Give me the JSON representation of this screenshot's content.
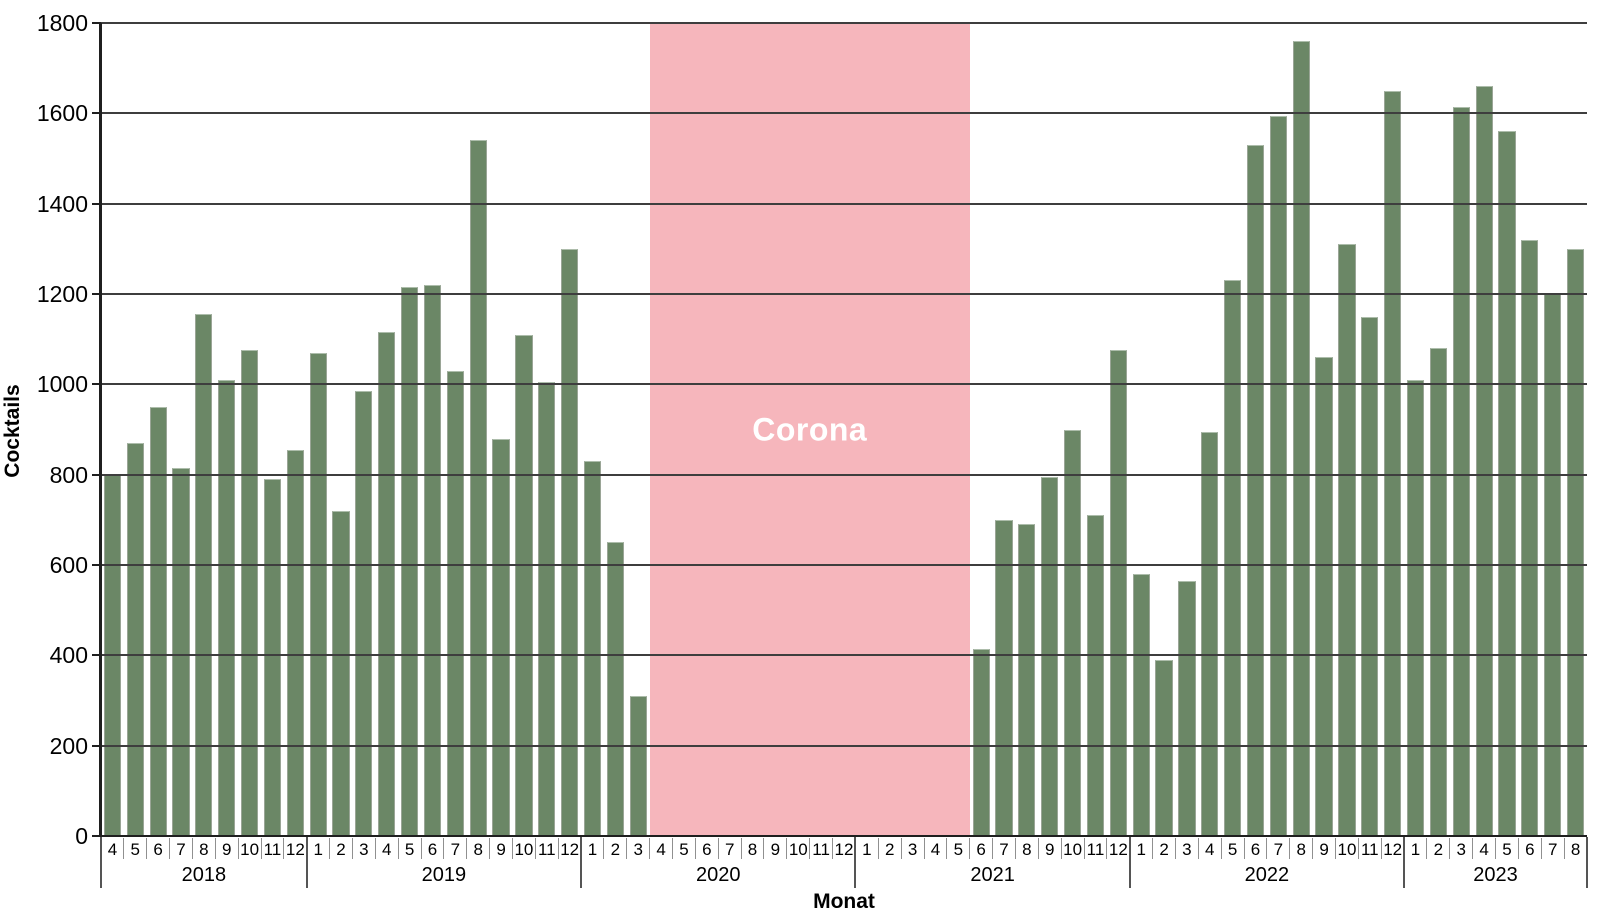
{
  "chart_data": {
    "type": "bar",
    "title": "",
    "xlabel": "Monat",
    "ylabel": "Cocktails",
    "ylim": [
      0,
      1800
    ],
    "y_ticks": [
      0,
      200,
      400,
      600,
      800,
      1000,
      1200,
      1400,
      1600,
      1800
    ],
    "grid": true,
    "bar_color": "#6B8766",
    "years": [
      {
        "year": "2018",
        "months": [
          4,
          5,
          6,
          7,
          8,
          9,
          10,
          11,
          12
        ],
        "values": [
          800,
          870,
          950,
          815,
          1155,
          1010,
          1075,
          790,
          855
        ]
      },
      {
        "year": "2019",
        "months": [
          1,
          2,
          3,
          4,
          5,
          6,
          7,
          8,
          9,
          10,
          11,
          12
        ],
        "values": [
          1070,
          720,
          985,
          1115,
          1215,
          1220,
          1030,
          1540,
          880,
          1110,
          1005,
          1300
        ]
      },
      {
        "year": "2020",
        "months": [
          1,
          2,
          3,
          4,
          5,
          6,
          7,
          8,
          9,
          10,
          11,
          12
        ],
        "values": [
          830,
          650,
          310,
          null,
          null,
          null,
          null,
          null,
          null,
          null,
          null,
          null
        ]
      },
      {
        "year": "2021",
        "months": [
          1,
          2,
          3,
          4,
          5,
          6,
          7,
          8,
          9,
          10,
          11,
          12
        ],
        "values": [
          null,
          null,
          null,
          null,
          null,
          415,
          700,
          690,
          795,
          900,
          710,
          1075
        ]
      },
      {
        "year": "2022",
        "months": [
          1,
          2,
          3,
          4,
          5,
          6,
          7,
          8,
          9,
          10,
          11,
          12
        ],
        "values": [
          580,
          390,
          565,
          895,
          1230,
          1530,
          1595,
          1760,
          1060,
          1310,
          1150,
          1650
        ]
      },
      {
        "year": "2023",
        "months": [
          1,
          2,
          3,
          4,
          5,
          6,
          7,
          8
        ],
        "values": [
          1010,
          1080,
          1615,
          1660,
          1560,
          1320,
          1200,
          1300
        ]
      }
    ],
    "annotation": {
      "label": "Corona",
      "start_year": "2020",
      "start_month": 4,
      "end_year": "2021",
      "end_month": 5,
      "color": "#F6B6BC",
      "text_color": "#ffffff"
    },
    "colors": {
      "gridline": "#3e3e3e",
      "axis": "#1f1f1f",
      "month_separator": "#909090",
      "year_separator": "#555555",
      "text": "#000000"
    }
  }
}
